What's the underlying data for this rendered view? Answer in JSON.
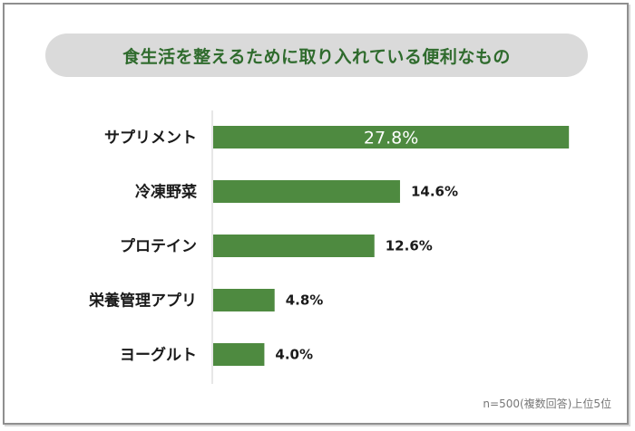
{
  "chart_data": {
    "type": "bar",
    "orientation": "horizontal",
    "title": "食生活を整えるために取り入れている便利なもの",
    "categories": [
      "サプリメント",
      "冷凍野菜",
      "プロテイン",
      "栄養管理アプリ",
      "ヨーグルト"
    ],
    "values": [
      27.8,
      14.6,
      12.6,
      4.8,
      4.0
    ],
    "value_labels": [
      "27.8%",
      "14.6%",
      "12.6%",
      "4.8%",
      "4.0%"
    ],
    "unit": "%",
    "xlim": [
      0,
      28
    ],
    "grid": false,
    "bar_color": "#4e8a40",
    "note": "n=500(複数回答)上位5位"
  }
}
